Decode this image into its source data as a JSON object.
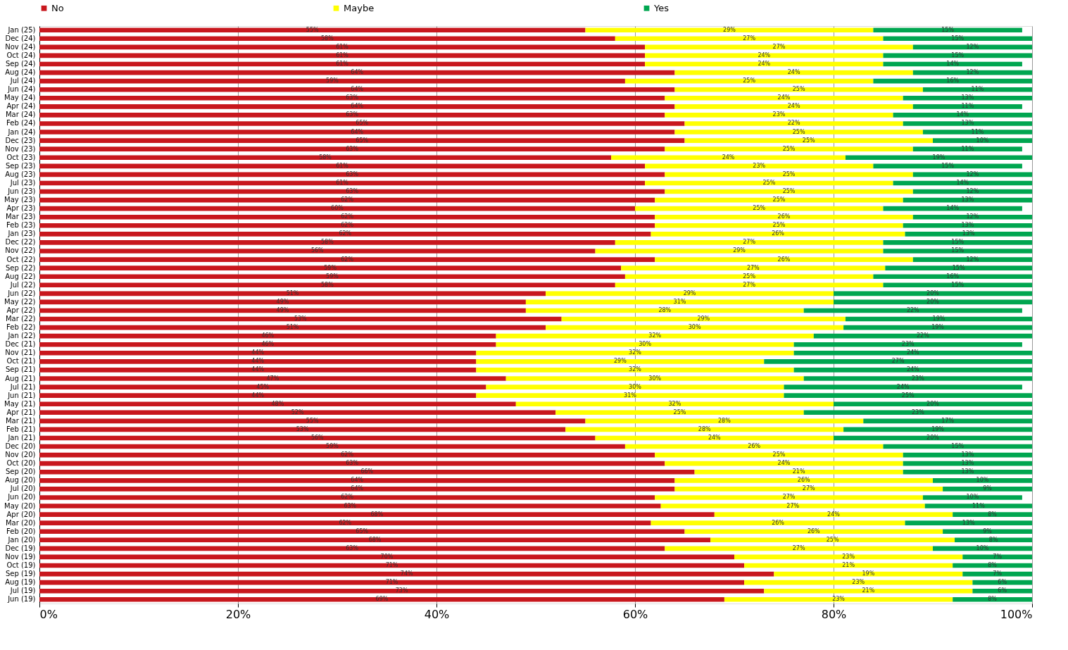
{
  "chart_data": {
    "type": "bar",
    "orientation": "horizontal",
    "stacked": true,
    "legend": "top",
    "grid": "x",
    "categories": [
      "Jan (25)",
      "Dec (24)",
      "Nov (24)",
      "Oct (24)",
      "Sep (24)",
      "Aug (24)",
      "Jul (24)",
      "Jun (24)",
      "May (24)",
      "Apr (24)",
      "Mar (24)",
      "Feb (24)",
      "Jan (24)",
      "Dec (23)",
      "Nov (23)",
      "Oct (23)",
      "Sep (23)",
      "Aug (23)",
      "Jul (23)",
      "Jun (23)",
      "May (23)",
      "Apr (23)",
      "Mar (23)",
      "Feb (23)",
      "Jan (23)",
      "Dec (22)",
      "Nov (22)",
      "Oct (22)",
      "Sep (22)",
      "Aug (22)",
      "Jul (22)",
      "Jun (22)",
      "May (22)",
      "Apr (22)",
      "Mar (22)",
      "Feb (22)",
      "Jan (22)",
      "Dec (21)",
      "Nov (21)",
      "Oct (21)",
      "Sep (21)",
      "Aug (21)",
      "Jul (21)",
      "Jun (21)",
      "May (21)",
      "Apr (21)",
      "Mar (21)",
      "Feb (21)",
      "Jan (21)",
      "Dec (20)",
      "Nov (20)",
      "Oct (20)",
      "Sep (20)",
      "Aug (20)",
      "Jul (20)",
      "Jun (20)",
      "May (20)",
      "Apr (20)",
      "Mar (20)",
      "Feb (20)",
      "Jan (20)",
      "Dec (19)",
      "Nov (19)",
      "Oct (19)",
      "Sep (19)",
      "Aug (19)",
      "Jul (19)",
      "Jun (19)"
    ],
    "xlim": [
      0,
      100
    ],
    "xticks": [
      {
        "value": 0,
        "label": "0%"
      },
      {
        "value": 20,
        "label": "20%"
      },
      {
        "value": 40,
        "label": "40%"
      },
      {
        "value": 60,
        "label": "60%"
      },
      {
        "value": 80,
        "label": "80%"
      },
      {
        "value": 100,
        "label": "100%"
      }
    ],
    "series": [
      {
        "name": "No",
        "color": "#c8171d",
        "values": [
          55,
          58,
          61,
          61,
          61,
          64,
          59,
          64,
          63,
          64,
          63,
          65,
          64,
          65,
          63,
          57.6,
          61,
          63,
          61,
          63,
          62,
          60,
          62,
          62,
          61.6,
          58,
          56,
          62,
          58.6,
          59,
          58,
          51,
          49,
          49,
          52.6,
          51,
          46,
          46,
          44,
          44,
          44,
          47,
          45,
          44,
          48,
          52,
          55,
          53,
          56,
          59,
          62,
          63,
          66,
          64,
          64,
          62,
          62.6,
          68,
          61.6,
          65,
          67.6,
          63,
          70,
          71,
          74,
          71,
          73,
          69
        ],
        "value_labels": [
          "55%",
          "58%",
          "61%",
          "61%",
          "61%",
          "64%",
          "59%",
          "64%",
          "63%",
          "64%",
          "63%",
          "65%",
          "64%",
          "65%",
          "63%",
          "58%",
          "61%",
          "63%",
          "61%",
          "63%",
          "62%",
          "60%",
          "62%",
          "62%",
          "62%",
          "58%",
          "56%",
          "62%",
          "59%",
          "59%",
          "58%",
          "51%",
          "49%",
          "49%",
          "53%",
          "51%",
          "46%",
          "46%",
          "44%",
          "44%",
          "44%",
          "47%",
          "45%",
          "44%",
          "48%",
          "52%",
          "55%",
          "53%",
          "56%",
          "59%",
          "62%",
          "63%",
          "66%",
          "64%",
          "64%",
          "62%",
          "63%",
          "68%",
          "62%",
          "65%",
          "68%",
          "63%",
          "70%",
          "71%",
          "74%",
          "71%",
          "73%",
          "69%"
        ]
      },
      {
        "name": "Maybe",
        "color": "#ffff00",
        "values": [
          29,
          27,
          27,
          24,
          24,
          24,
          25,
          25,
          24,
          24,
          23,
          22,
          25,
          25,
          25,
          23.6,
          23,
          25,
          25,
          25,
          25,
          25,
          26,
          25,
          25.6,
          27,
          29,
          26,
          26.6,
          25,
          27,
          29,
          31,
          28,
          28.6,
          30,
          32,
          30,
          32,
          29,
          32,
          30,
          30,
          31,
          32,
          25,
          28,
          28,
          24,
          26,
          25,
          24,
          21,
          26,
          27,
          27,
          26.6,
          24,
          25.6,
          26,
          24.6,
          27,
          23,
          21,
          19,
          23,
          21,
          23
        ],
        "value_labels": [
          "29%",
          "27%",
          "27%",
          "24%",
          "24%",
          "24%",
          "25%",
          "25%",
          "24%",
          "24%",
          "23%",
          "22%",
          "25%",
          "25%",
          "25%",
          "24%",
          "23%",
          "25%",
          "25%",
          "25%",
          "25%",
          "25%",
          "26%",
          "25%",
          "26%",
          "27%",
          "29%",
          "26%",
          "27%",
          "25%",
          "27%",
          "29%",
          "31%",
          "28%",
          "29%",
          "30%",
          "32%",
          "30%",
          "32%",
          "29%",
          "32%",
          "30%",
          "30%",
          "31%",
          "32%",
          "25%",
          "28%",
          "28%",
          "24%",
          "26%",
          "25%",
          "24%",
          "21%",
          "26%",
          "27%",
          "27%",
          "27%",
          "24%",
          "26%",
          "26%",
          "25%",
          "27%",
          "23%",
          "21%",
          "19%",
          "23%",
          "21%",
          "23%"
        ]
      },
      {
        "name": "Yes",
        "color": "#00a650",
        "values": [
          15,
          15,
          12,
          15,
          14,
          12,
          16,
          11,
          13,
          11,
          14,
          13,
          11,
          10,
          11,
          18.8,
          15,
          12,
          14,
          12,
          13,
          14,
          12,
          13,
          12.8,
          15,
          15,
          12,
          14.8,
          16,
          15,
          20,
          20,
          22,
          18.8,
          19,
          22,
          23,
          24,
          27,
          24,
          23,
          24,
          25,
          20,
          23,
          17,
          19,
          20,
          15,
          13,
          13,
          13,
          10,
          9,
          10,
          10.8,
          8,
          12.8,
          9,
          7.8,
          10,
          7,
          8,
          7,
          6,
          6,
          8
        ],
        "value_labels": [
          "15%",
          "15%",
          "12%",
          "15%",
          "14%",
          "12%",
          "16%",
          "11%",
          "13%",
          "11%",
          "14%",
          "13%",
          "11%",
          "10%",
          "11%",
          "19%",
          "15%",
          "12%",
          "14%",
          "12%",
          "13%",
          "14%",
          "12%",
          "13%",
          "13%",
          "15%",
          "15%",
          "12%",
          "15%",
          "16%",
          "15%",
          "20%",
          "20%",
          "22%",
          "19%",
          "19%",
          "22%",
          "23%",
          "24%",
          "27%",
          "24%",
          "23%",
          "24%",
          "25%",
          "20%",
          "23%",
          "17%",
          "19%",
          "20%",
          "15%",
          "13%",
          "13%",
          "13%",
          "10%",
          "9%",
          "10%",
          "11%",
          "8%",
          "13%",
          "9%",
          "8%",
          "10%",
          "7%",
          "8%",
          "7%",
          "6%",
          "6%",
          "8%"
        ]
      }
    ]
  }
}
